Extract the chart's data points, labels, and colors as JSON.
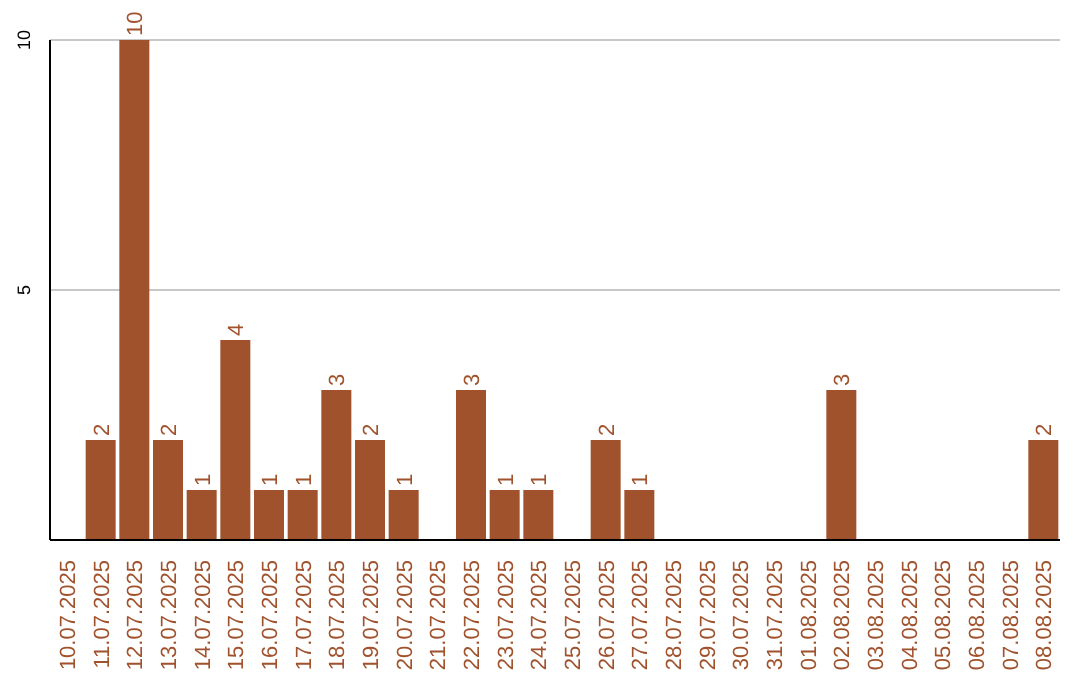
{
  "chart_data": {
    "type": "bar",
    "categories": [
      "10.07.2025",
      "11.07.2025",
      "12.07.2025",
      "13.07.2025",
      "14.07.2025",
      "15.07.2025",
      "16.07.2025",
      "17.07.2025",
      "18.07.2025",
      "19.07.2025",
      "20.07.2025",
      "21.07.2025",
      "22.07.2025",
      "23.07.2025",
      "24.07.2025",
      "25.07.2025",
      "26.07.2025",
      "27.07.2025",
      "28.07.2025",
      "29.07.2025",
      "30.07.2025",
      "31.07.2025",
      "01.08.2025",
      "02.08.2025",
      "03.08.2025",
      "04.08.2025",
      "05.08.2025",
      "06.08.2025",
      "07.08.2025",
      "08.08.2025"
    ],
    "values": [
      0,
      2,
      10,
      2,
      1,
      4,
      1,
      1,
      3,
      2,
      1,
      0,
      3,
      1,
      1,
      0,
      2,
      1,
      0,
      0,
      0,
      0,
      0,
      3,
      0,
      0,
      0,
      0,
      0,
      2
    ],
    "value_labels": [
      null,
      "2",
      "10",
      "2",
      "1",
      "4",
      "1",
      "1",
      "3",
      "2",
      "1",
      null,
      "3",
      "1",
      "1",
      null,
      "2",
      "1",
      null,
      null,
      null,
      null,
      null,
      "3",
      null,
      null,
      null,
      null,
      null,
      "2"
    ],
    "color": "#a0522d",
    "ylim": [
      0,
      10
    ],
    "yticks": [
      5,
      10
    ],
    "grid": "y"
  }
}
